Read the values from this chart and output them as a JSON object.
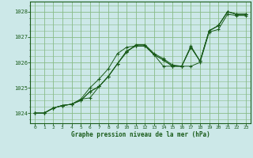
{
  "title": "Graphe pression niveau de la mer (hPa)",
  "bg_color": "#cce8e8",
  "grid_color": "#88bb88",
  "line_color": "#1a5c1a",
  "marker": "+",
  "xlim": [
    -0.5,
    23.5
  ],
  "ylim": [
    1023.6,
    1028.4
  ],
  "xticks": [
    0,
    1,
    2,
    3,
    4,
    5,
    6,
    7,
    8,
    9,
    10,
    11,
    12,
    13,
    14,
    15,
    16,
    17,
    18,
    19,
    20,
    21,
    22,
    23
  ],
  "yticks": [
    1024,
    1025,
    1026,
    1027,
    1028
  ],
  "series": [
    [
      1024.0,
      1024.0,
      1024.2,
      1024.3,
      1024.35,
      1024.5,
      1024.85,
      1025.05,
      1025.45,
      1025.95,
      1026.45,
      1026.65,
      1026.65,
      1026.3,
      1026.1,
      1025.85,
      1025.85,
      1026.6,
      1026.05,
      1027.25,
      1027.45,
      1028.0,
      1027.9,
      1027.9
    ],
    [
      1024.0,
      1024.0,
      1024.2,
      1024.3,
      1024.35,
      1024.5,
      1024.85,
      1025.05,
      1025.45,
      1025.95,
      1026.45,
      1026.65,
      1026.65,
      1026.3,
      1026.1,
      1025.85,
      1025.85,
      1026.6,
      1026.05,
      1027.25,
      1027.45,
      1028.0,
      1027.9,
      1027.9
    ],
    [
      1024.0,
      1024.0,
      1024.2,
      1024.3,
      1024.35,
      1024.55,
      1025.0,
      1025.35,
      1025.75,
      1026.35,
      1026.6,
      1026.65,
      1026.65,
      1026.3,
      1025.85,
      1025.85,
      1025.85,
      1025.85,
      1026.0,
      1027.2,
      1027.3,
      1027.9,
      1027.85,
      1027.85
    ],
    [
      1024.0,
      1024.0,
      1024.2,
      1024.3,
      1024.35,
      1024.55,
      1024.6,
      1025.05,
      1025.45,
      1025.95,
      1026.4,
      1026.7,
      1026.7,
      1026.35,
      1026.15,
      1025.9,
      1025.85,
      1026.65,
      1026.05,
      1027.25,
      1027.45,
      1028.0,
      1027.9,
      1027.9
    ]
  ]
}
